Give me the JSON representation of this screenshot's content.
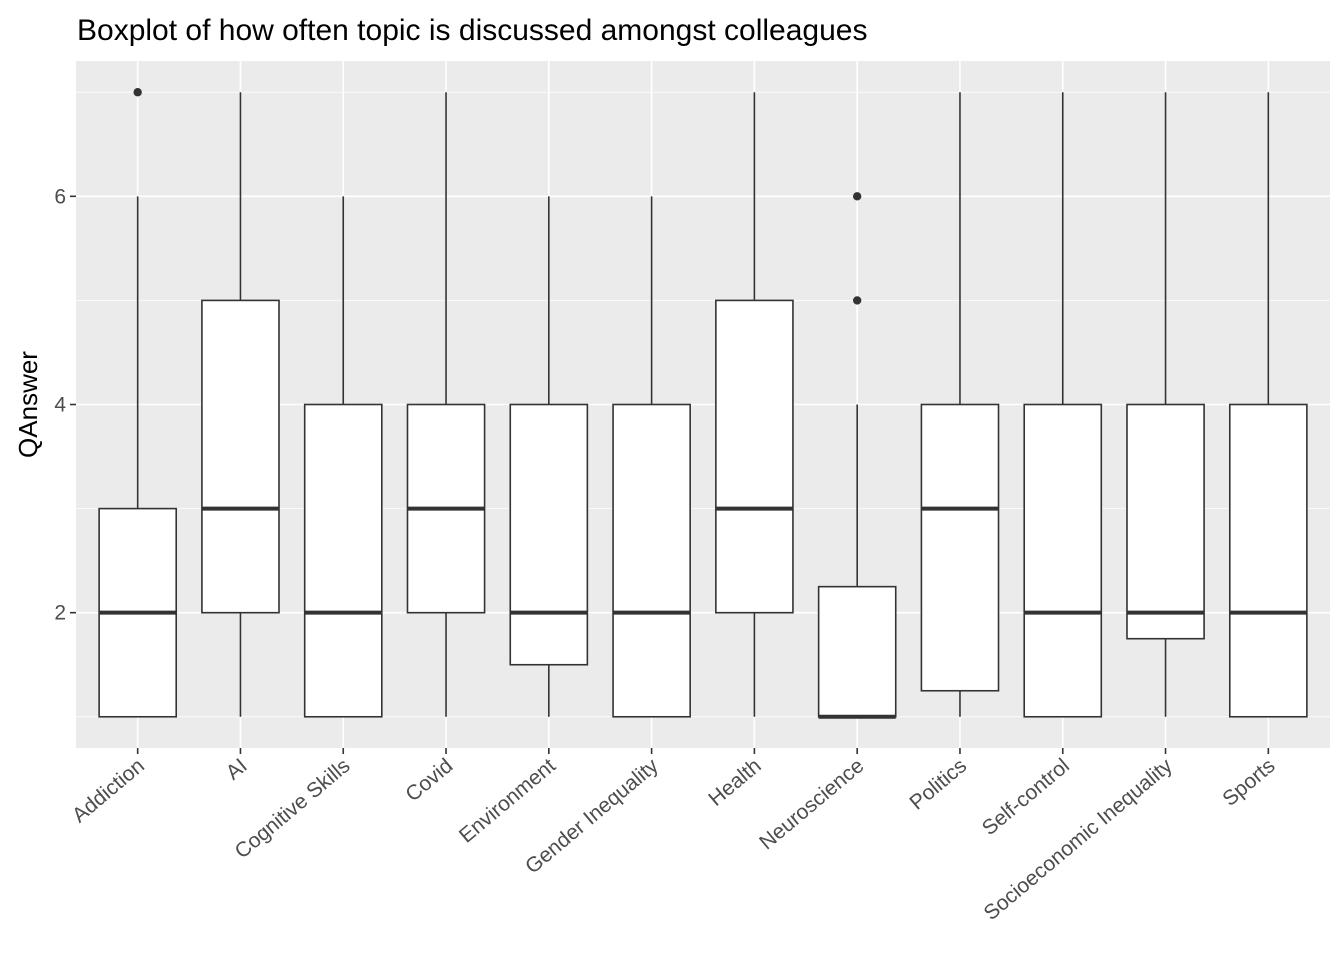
{
  "chart_data": {
    "type": "boxplot",
    "title": "Boxplot of how often topic is discussed amongst colleagues",
    "xlabel": "",
    "ylabel": "QAnswer",
    "ylim": [
      0.7,
      7.3
    ],
    "yticks": [
      2,
      4,
      6
    ],
    "grid": true,
    "legend": "none",
    "categories": [
      "Addiction",
      "AI",
      "Cognitive Skills",
      "Covid",
      "Environment",
      "Gender Inequality",
      "Health",
      "Neuroscience",
      "Politics",
      "Self-control",
      "Socioeconomic Inequality",
      "Sports"
    ],
    "boxes": [
      {
        "min": 1,
        "q1": 1,
        "median": 2,
        "q3": 3,
        "max": 6,
        "outliers": [
          7
        ]
      },
      {
        "min": 1,
        "q1": 2,
        "median": 3,
        "q3": 5,
        "max": 7,
        "outliers": []
      },
      {
        "min": 1,
        "q1": 1,
        "median": 2,
        "q3": 4,
        "max": 6,
        "outliers": []
      },
      {
        "min": 1,
        "q1": 2,
        "median": 3,
        "q3": 4,
        "max": 7,
        "outliers": []
      },
      {
        "min": 1,
        "q1": 1.5,
        "median": 2,
        "q3": 4,
        "max": 6,
        "outliers": []
      },
      {
        "min": 1,
        "q1": 1,
        "median": 2,
        "q3": 4,
        "max": 6,
        "outliers": []
      },
      {
        "min": 1,
        "q1": 2,
        "median": 3,
        "q3": 5,
        "max": 7,
        "outliers": []
      },
      {
        "min": 1,
        "q1": 1,
        "median": 1,
        "q3": 2.25,
        "max": 4,
        "outliers": [
          5,
          6
        ]
      },
      {
        "min": 1,
        "q1": 1.25,
        "median": 3,
        "q3": 4,
        "max": 7,
        "outliers": []
      },
      {
        "min": 1,
        "q1": 1,
        "median": 2,
        "q3": 4,
        "max": 7,
        "outliers": []
      },
      {
        "min": 1,
        "q1": 1.75,
        "median": 2,
        "q3": 4,
        "max": 7,
        "outliers": []
      },
      {
        "min": 1,
        "q1": 1,
        "median": 2,
        "q3": 4,
        "max": 7,
        "outliers": []
      }
    ],
    "colors": {
      "panel": "#EBEBEB",
      "grid": "#FFFFFF",
      "box_fill": "#FFFFFF",
      "box_line": "#333333",
      "outlier": "#333333",
      "tick_text": "#4D4D4D"
    }
  }
}
